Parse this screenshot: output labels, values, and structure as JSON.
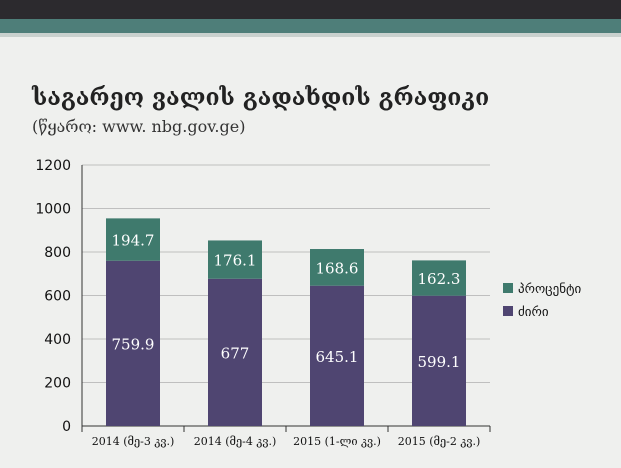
{
  "header": {
    "title": "საგარეო ვალის გადახდის გრაფიკი",
    "source": "(წყარო: www. nbg.gov.ge)"
  },
  "colors": {
    "principal": "#4f4571",
    "interest": "#3f7a6d",
    "grid": "#bfbfbf",
    "axis": "#333333"
  },
  "chart_data": {
    "type": "bar",
    "stacked": true,
    "title": "საგარეო ვალის გადახდის გრაფიკი",
    "subtitle": "(წყარო: www. nbg.gov.ge)",
    "categories": [
      "2014 (მე-3 კვ.)",
      "2014 (მე-4 კვ.)",
      "2015 (1-ლი კვ.)",
      "2015 (მე-2 კვ.)"
    ],
    "series": [
      {
        "name": "ძირი",
        "values": [
          759.9,
          677,
          645.1,
          599.1
        ],
        "color": "#4f4571"
      },
      {
        "name": "პროცენტი",
        "values": [
          194.7,
          176.1,
          168.6,
          162.3
        ],
        "color": "#3f7a6d"
      }
    ],
    "value_labels": [
      [
        "759.9",
        "677",
        "645.1",
        "599.1"
      ],
      [
        "194.7",
        "176.1",
        "168.6",
        "162.3"
      ]
    ],
    "ylim": [
      0,
      1200
    ],
    "yticks": [
      "0",
      "200",
      "400",
      "600",
      "800",
      "1000",
      "1200"
    ],
    "ytick_values": [
      0,
      200,
      400,
      600,
      800,
      1000,
      1200
    ],
    "grid": true,
    "legend_position": "right",
    "legend_order": [
      "პროცენტი",
      "ძირი"
    ],
    "xlabel": "",
    "ylabel": ""
  }
}
